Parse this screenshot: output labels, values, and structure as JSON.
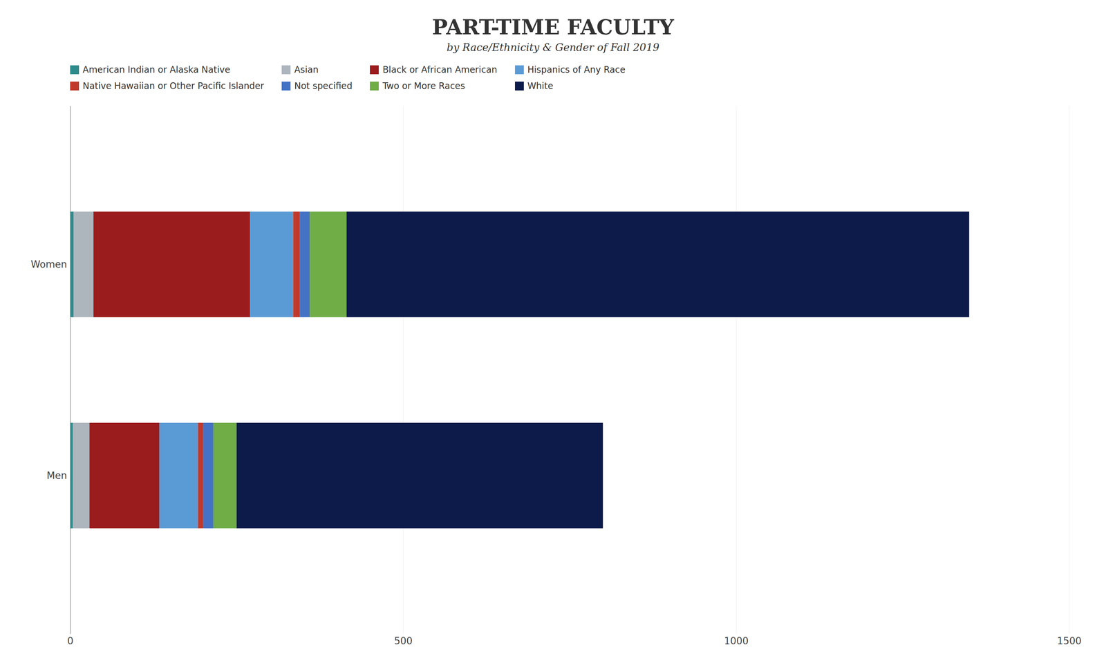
{
  "chart_data": {
    "type": "bar",
    "orientation": "horizontal",
    "stacked": true,
    "title": "PART-TIME FACULTY",
    "subtitle": "by Race/Ethnicity & Gender of Fall 2019",
    "categories": [
      "Women",
      "Men"
    ],
    "series": [
      {
        "name": "American Indian or Alaska Native",
        "color": "#2d8b8b",
        "values": [
          5,
          4
        ]
      },
      {
        "name": "Asian",
        "color": "#adb5bd",
        "values": [
          30,
          25
        ]
      },
      {
        "name": "Black or African American",
        "color": "#9b1c1c",
        "values": [
          235,
          105
        ]
      },
      {
        "name": "Hispanics of Any Race",
        "color": "#5b9bd5",
        "values": [
          65,
          58
        ]
      },
      {
        "name": "Native Hawaiian or Other Pacific Islander",
        "color": "#c0392b",
        "values": [
          10,
          8
        ]
      },
      {
        "name": "Not specified",
        "color": "#4472c4",
        "values": [
          15,
          15
        ]
      },
      {
        "name": "Two or More Races",
        "color": "#70ad47",
        "values": [
          55,
          35
        ]
      },
      {
        "name": "White",
        "color": "#0d1b4b",
        "values": [
          935,
          550
        ]
      }
    ],
    "xlim": [
      0,
      1500
    ],
    "xticks": [
      0,
      500,
      1000,
      1500
    ],
    "grid": true,
    "legend": "top"
  }
}
